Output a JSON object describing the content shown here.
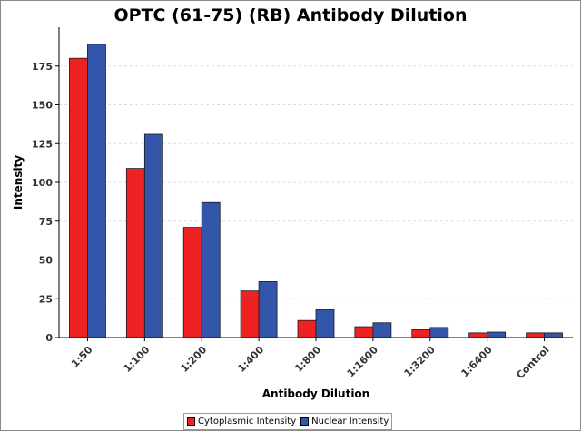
{
  "chart_data": {
    "type": "bar",
    "title": "OPTC (61-75) (RB) Antibody Dilution",
    "xlabel": "Antibody Dilution",
    "ylabel": "Intensity",
    "categories": [
      "1:50",
      "1:100",
      "1:200",
      "1:400",
      "1:800",
      "1:1600",
      "1:3200",
      "1:6400",
      "Control"
    ],
    "series": [
      {
        "name": "Cytoplasmic Intensity",
        "color": "#ee2222",
        "values": [
          180,
          109,
          71,
          30,
          11,
          7,
          5,
          3,
          3
        ]
      },
      {
        "name": "Nuclear Intensity",
        "color": "#3355aa",
        "values": [
          189,
          131,
          87,
          36,
          18,
          9.5,
          6.5,
          3.5,
          3
        ]
      }
    ],
    "ylim": [
      0,
      200
    ],
    "yticks": [
      0,
      25,
      50,
      75,
      100,
      125,
      150,
      175
    ],
    "grid": true,
    "legend": "bottom"
  }
}
